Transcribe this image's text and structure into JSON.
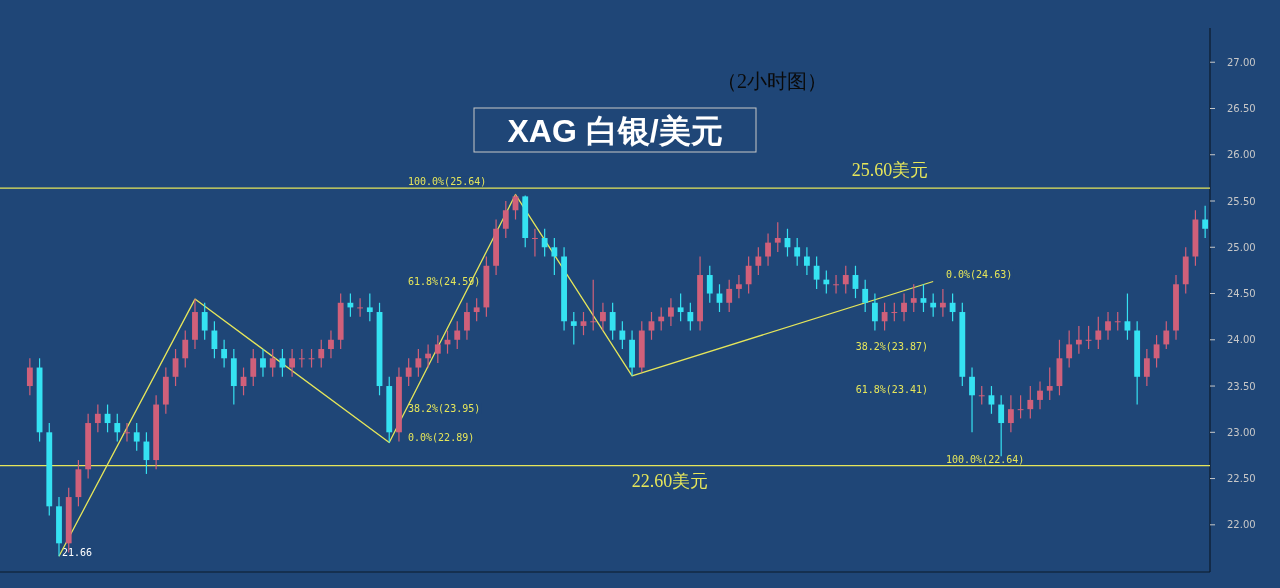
{
  "chart_data": {
    "type": "candlestick",
    "title": "XAG 白银/美元",
    "subtitle": "（2小时图）",
    "ylim": [
      21.49,
      27.37
    ],
    "yticks": [
      {
        "value": 22,
        "label": "22.00"
      },
      {
        "value": 22.5,
        "label": "22.50"
      },
      {
        "value": 23,
        "label": "23.00"
      },
      {
        "value": 23.5,
        "label": "23.50"
      },
      {
        "value": 24,
        "label": "24.00"
      },
      {
        "value": 24.5,
        "label": "24.50"
      },
      {
        "value": 25,
        "label": "25.00"
      },
      {
        "value": 25.5,
        "label": "25.50"
      },
      {
        "value": 26,
        "label": "26.00"
      },
      {
        "value": 26.5,
        "label": "26.50"
      },
      {
        "value": 27,
        "label": "27.00"
      }
    ],
    "tick_labels": "y",
    "grid": false,
    "categories": [
      null,
      null,
      null,
      null,
      null,
      null,
      null,
      null,
      null,
      null,
      null,
      null,
      null,
      null,
      null,
      null,
      null,
      null,
      null,
      null,
      null,
      null,
      null,
      null,
      null,
      null,
      null,
      null,
      null,
      null,
      null,
      null,
      null,
      null,
      null,
      null,
      null,
      null,
      null,
      null,
      null,
      null,
      null,
      null,
      null,
      null,
      null,
      null,
      null,
      null,
      null,
      null,
      null,
      null,
      null,
      null,
      null,
      null,
      null,
      null,
      null,
      null,
      null,
      null,
      null,
      null,
      null,
      null,
      null,
      null,
      null,
      null,
      null,
      null,
      null,
      null,
      null,
      null,
      null,
      null,
      null,
      null,
      null,
      null,
      null,
      null,
      null,
      null,
      null,
      null,
      null,
      null,
      null,
      null,
      null,
      null,
      null,
      null,
      null,
      null,
      null,
      null,
      null,
      null,
      null,
      null,
      null,
      null,
      null,
      null,
      null,
      null,
      null,
      null,
      null,
      null,
      null,
      null,
      null,
      null,
      null,
      null
    ],
    "ohlc": [
      [
        23.5,
        23.8,
        23.4,
        23.7
      ],
      [
        23.7,
        23.8,
        22.9,
        23.0
      ],
      [
        23.0,
        23.1,
        22.1,
        22.2
      ],
      [
        22.2,
        22.3,
        21.66,
        21.8
      ],
      [
        21.8,
        22.4,
        21.7,
        22.3
      ],
      [
        22.3,
        22.7,
        22.2,
        22.6
      ],
      [
        22.6,
        23.2,
        22.5,
        23.1
      ],
      [
        23.1,
        23.3,
        23.0,
        23.2
      ],
      [
        23.2,
        23.3,
        23.0,
        23.1
      ],
      [
        23.1,
        23.2,
        22.9,
        23.0
      ],
      [
        23.0,
        23.1,
        22.9,
        23.0
      ],
      [
        23.0,
        23.1,
        22.8,
        22.9
      ],
      [
        22.9,
        23.0,
        22.55,
        22.7
      ],
      [
        22.7,
        23.4,
        22.6,
        23.3
      ],
      [
        23.3,
        23.7,
        23.2,
        23.6
      ],
      [
        23.6,
        23.9,
        23.5,
        23.8
      ],
      [
        23.8,
        24.1,
        23.7,
        24.0
      ],
      [
        24.0,
        24.44,
        23.9,
        24.3
      ],
      [
        24.3,
        24.4,
        24.0,
        24.1
      ],
      [
        24.1,
        24.2,
        23.8,
        23.9
      ],
      [
        23.9,
        24.0,
        23.7,
        23.8
      ],
      [
        23.8,
        23.9,
        23.3,
        23.5
      ],
      [
        23.5,
        23.7,
        23.4,
        23.6
      ],
      [
        23.6,
        23.9,
        23.5,
        23.8
      ],
      [
        23.8,
        23.9,
        23.6,
        23.7
      ],
      [
        23.7,
        23.9,
        23.6,
        23.8
      ],
      [
        23.8,
        23.9,
        23.6,
        23.7
      ],
      [
        23.7,
        23.9,
        23.6,
        23.8
      ],
      [
        23.8,
        23.9,
        23.7,
        23.8
      ],
      [
        23.8,
        23.9,
        23.7,
        23.8
      ],
      [
        23.8,
        24.0,
        23.7,
        23.9
      ],
      [
        23.9,
        24.1,
        23.8,
        24.0
      ],
      [
        24.0,
        24.5,
        23.9,
        24.4
      ],
      [
        24.4,
        24.5,
        24.25,
        24.35
      ],
      [
        24.35,
        24.45,
        24.25,
        24.35
      ],
      [
        24.35,
        24.5,
        24.2,
        24.3
      ],
      [
        24.3,
        24.4,
        23.4,
        23.5
      ],
      [
        23.5,
        23.6,
        22.89,
        23.0
      ],
      [
        23.0,
        23.7,
        22.9,
        23.6
      ],
      [
        23.6,
        23.8,
        23.5,
        23.7
      ],
      [
        23.7,
        23.9,
        23.6,
        23.8
      ],
      [
        23.8,
        23.95,
        23.7,
        23.85
      ],
      [
        23.85,
        24.05,
        23.75,
        23.95
      ],
      [
        23.95,
        24.1,
        23.85,
        24.0
      ],
      [
        24.0,
        24.2,
        23.9,
        24.1
      ],
      [
        24.1,
        24.4,
        24.0,
        24.3
      ],
      [
        24.3,
        24.45,
        24.2,
        24.35
      ],
      [
        24.35,
        24.9,
        24.25,
        24.8
      ],
      [
        24.8,
        25.3,
        24.7,
        25.2
      ],
      [
        25.2,
        25.5,
        25.1,
        25.4
      ],
      [
        25.4,
        25.57,
        25.3,
        25.55
      ],
      [
        25.55,
        25.56,
        25.0,
        25.1
      ],
      [
        25.1,
        25.2,
        24.9,
        25.1
      ],
      [
        25.1,
        25.2,
        24.9,
        25.0
      ],
      [
        25.0,
        25.1,
        24.7,
        24.9
      ],
      [
        24.9,
        25.0,
        24.1,
        24.2
      ],
      [
        24.2,
        24.3,
        23.95,
        24.15
      ],
      [
        24.15,
        24.3,
        24.05,
        24.2
      ],
      [
        24.2,
        24.65,
        24.1,
        24.2
      ],
      [
        24.2,
        24.4,
        24.1,
        24.3
      ],
      [
        24.3,
        24.4,
        24.0,
        24.1
      ],
      [
        24.1,
        24.2,
        23.9,
        24.0
      ],
      [
        24.0,
        24.1,
        23.61,
        23.7
      ],
      [
        23.7,
        24.2,
        23.65,
        24.1
      ],
      [
        24.1,
        24.3,
        24.0,
        24.2
      ],
      [
        24.2,
        24.35,
        24.1,
        24.25
      ],
      [
        24.25,
        24.45,
        24.15,
        24.35
      ],
      [
        24.35,
        24.5,
        24.2,
        24.3
      ],
      [
        24.3,
        24.4,
        24.1,
        24.2
      ],
      [
        24.2,
        24.9,
        24.1,
        24.7
      ],
      [
        24.7,
        24.8,
        24.4,
        24.5
      ],
      [
        24.5,
        24.6,
        24.3,
        24.4
      ],
      [
        24.4,
        24.65,
        24.3,
        24.55
      ],
      [
        24.55,
        24.7,
        24.45,
        24.6
      ],
      [
        24.6,
        24.9,
        24.5,
        24.8
      ],
      [
        24.8,
        25.0,
        24.7,
        24.9
      ],
      [
        24.9,
        25.15,
        24.8,
        25.05
      ],
      [
        25.05,
        25.27,
        24.95,
        25.1
      ],
      [
        25.1,
        25.2,
        24.9,
        25.0
      ],
      [
        25.0,
        25.1,
        24.8,
        24.9
      ],
      [
        24.9,
        25.0,
        24.7,
        24.8
      ],
      [
        24.8,
        24.9,
        24.55,
        24.65
      ],
      [
        24.65,
        24.75,
        24.5,
        24.6
      ],
      [
        24.6,
        24.7,
        24.5,
        24.6
      ],
      [
        24.6,
        24.8,
        24.5,
        24.7
      ],
      [
        24.7,
        24.8,
        24.45,
        24.55
      ],
      [
        24.55,
        24.65,
        24.3,
        24.4
      ],
      [
        24.4,
        24.5,
        24.1,
        24.2
      ],
      [
        24.2,
        24.4,
        24.1,
        24.3
      ],
      [
        24.3,
        24.4,
        24.2,
        24.3
      ],
      [
        24.3,
        24.5,
        24.2,
        24.4
      ],
      [
        24.4,
        24.6,
        24.3,
        24.45
      ],
      [
        24.45,
        24.6,
        24.3,
        24.4
      ],
      [
        24.4,
        24.5,
        24.25,
        24.35
      ],
      [
        24.35,
        24.55,
        24.25,
        24.4
      ],
      [
        24.4,
        24.5,
        24.2,
        24.3
      ],
      [
        24.3,
        24.4,
        23.5,
        23.6
      ],
      [
        23.6,
        23.7,
        23.0,
        23.4
      ],
      [
        23.4,
        23.5,
        23.3,
        23.4
      ],
      [
        23.4,
        23.5,
        23.2,
        23.3
      ],
      [
        23.3,
        23.4,
        22.74,
        23.1
      ],
      [
        23.1,
        23.4,
        23.0,
        23.25
      ],
      [
        23.25,
        23.4,
        23.15,
        23.25
      ],
      [
        23.25,
        23.5,
        23.15,
        23.35
      ],
      [
        23.35,
        23.55,
        23.25,
        23.45
      ],
      [
        23.45,
        23.7,
        23.35,
        23.5
      ],
      [
        23.5,
        24.0,
        23.4,
        23.8
      ],
      [
        23.8,
        24.1,
        23.7,
        23.95
      ],
      [
        23.95,
        24.15,
        23.85,
        24.0
      ],
      [
        24.0,
        24.15,
        23.9,
        24.0
      ],
      [
        24.0,
        24.25,
        23.9,
        24.1
      ],
      [
        24.1,
        24.3,
        24.0,
        24.2
      ],
      [
        24.2,
        24.3,
        24.1,
        24.2
      ],
      [
        24.2,
        24.5,
        24.0,
        24.1
      ],
      [
        24.1,
        24.2,
        23.3,
        23.6
      ],
      [
        23.6,
        23.9,
        23.5,
        23.8
      ],
      [
        23.8,
        24.05,
        23.7,
        23.95
      ],
      [
        23.95,
        24.2,
        23.9,
        24.1
      ],
      [
        24.1,
        24.7,
        24.0,
        24.6
      ],
      [
        24.6,
        25.0,
        24.5,
        24.9
      ],
      [
        24.9,
        25.4,
        24.8,
        25.3
      ],
      [
        25.3,
        25.45,
        25.1,
        25.2
      ]
    ],
    "series": [
      {
        "type": "line",
        "color": "#e6e65a",
        "values": [
          null,
          null,
          null,
          21.66,
          null,
          null,
          null,
          null,
          null,
          null,
          null,
          null,
          null,
          null,
          null,
          null,
          null,
          24.44,
          null,
          null,
          null,
          null,
          null,
          null,
          null,
          null,
          null,
          null,
          null,
          null,
          null,
          null,
          null,
          null,
          null,
          null,
          null,
          22.89,
          null,
          null,
          null,
          null,
          null,
          null,
          null,
          null,
          null,
          null,
          null,
          null,
          25.57,
          null,
          null,
          null,
          null,
          null,
          null,
          null,
          null,
          null,
          null,
          null,
          23.61,
          null,
          null,
          null,
          null,
          null,
          null,
          null,
          null,
          null,
          null,
          null,
          null,
          null,
          null,
          null,
          null,
          null,
          null,
          null,
          null,
          null,
          null,
          null,
          null,
          null,
          null,
          null,
          null,
          null,
          null,
          24.63,
          null,
          null,
          null,
          null,
          null,
          null,
          null,
          null,
          null,
          null,
          null,
          null,
          null,
          null,
          null,
          null,
          null,
          null,
          null,
          null,
          null,
          null,
          null,
          null,
          null,
          null,
          null,
          null
        ]
      }
    ],
    "ref_lines": [
      {
        "axis": "y",
        "value": 25.64,
        "label": "25.60美元",
        "color": "#e6e65a"
      },
      {
        "axis": "y",
        "value": 22.64,
        "label": "22.60美元",
        "color": "#e6e65a"
      }
    ],
    "annotations": [
      {
        "text": "100.0%(25.64)",
        "y": 25.64
      },
      "61.8%(24.59)",
      "38.2%(23.95)",
      "0.0%(22.89)",
      "0.0%(24.63)",
      "38.2%(23.87)",
      "61.8%(23.41)",
      {
        "text": "100.0%(22.64)",
        "y": 22.64
      },
      "21.66"
    ]
  }
}
